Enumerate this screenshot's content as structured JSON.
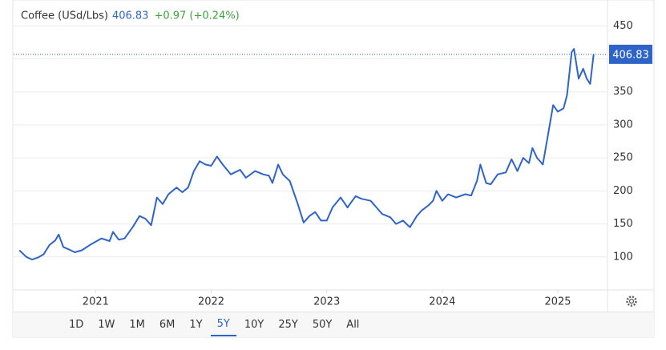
{
  "chart_data": {
    "type": "line",
    "title": "Coffee (USd/Lbs)",
    "last_price": "406.83",
    "change": "+0.97 (+0.24%)",
    "x": [
      2020.34,
      2020.4,
      2020.45,
      2020.5,
      2020.55,
      2020.6,
      2020.65,
      2020.68,
      2020.72,
      2020.76,
      2020.82,
      2020.88,
      2020.95,
      2021.0,
      2021.05,
      2021.12,
      2021.15,
      2021.2,
      2021.25,
      2021.32,
      2021.38,
      2021.43,
      2021.48,
      2021.53,
      2021.58,
      2021.63,
      2021.7,
      2021.75,
      2021.8,
      2021.85,
      2021.9,
      2021.95,
      2022.0,
      2022.05,
      2022.1,
      2022.17,
      2022.25,
      2022.3,
      2022.38,
      2022.45,
      2022.5,
      2022.53,
      2022.58,
      2022.62,
      2022.68,
      2022.75,
      2022.8,
      2022.85,
      2022.9,
      2022.95,
      2023.0,
      2023.05,
      2023.12,
      2023.18,
      2023.25,
      2023.3,
      2023.38,
      2023.43,
      2023.48,
      2023.55,
      2023.6,
      2023.66,
      2023.72,
      2023.78,
      2023.82,
      2023.88,
      2023.92,
      2023.95,
      2024.0,
      2024.05,
      2024.12,
      2024.2,
      2024.25,
      2024.3,
      2024.33,
      2024.38,
      2024.42,
      2024.48,
      2024.55,
      2024.6,
      2024.65,
      2024.7,
      2024.75,
      2024.78,
      2024.82,
      2024.87,
      2024.92,
      2024.96,
      2025.0,
      2025.05,
      2025.08,
      2025.12,
      2025.14,
      2025.18,
      2025.22,
      2025.25,
      2025.28,
      2025.31
    ],
    "series": [
      {
        "name": "Coffee",
        "color": "#2e64c8",
        "values": [
          110,
          100,
          96,
          99,
          104,
          118,
          125,
          134,
          115,
          112,
          107,
          110,
          118,
          123,
          128,
          124,
          138,
          126,
          128,
          145,
          162,
          158,
          148,
          190,
          180,
          195,
          205,
          198,
          205,
          230,
          245,
          240,
          238,
          252,
          240,
          225,
          232,
          220,
          230,
          225,
          223,
          212,
          240,
          225,
          215,
          180,
          152,
          162,
          168,
          155,
          155,
          175,
          190,
          175,
          192,
          188,
          185,
          175,
          165,
          160,
          150,
          155,
          145,
          162,
          170,
          178,
          185,
          200,
          185,
          195,
          190,
          195,
          193,
          215,
          240,
          212,
          210,
          225,
          228,
          248,
          230,
          250,
          242,
          265,
          250,
          240,
          290,
          330,
          320,
          325,
          345,
          410,
          415,
          370,
          385,
          370,
          362,
          406.83
        ]
      }
    ],
    "xlim": [
      2020.29,
      2025.43
    ],
    "xticks": [
      2021,
      2022,
      2023,
      2024,
      2025
    ],
    "ylim": [
      50,
      477
    ],
    "yticks": [
      100,
      150,
      200,
      250,
      300,
      350,
      400,
      450
    ],
    "grid": true,
    "ranges": [
      "1D",
      "1W",
      "1M",
      "6M",
      "1Y",
      "5Y",
      "10Y",
      "25Y",
      "50Y",
      "All"
    ],
    "selected_range": "5Y"
  }
}
